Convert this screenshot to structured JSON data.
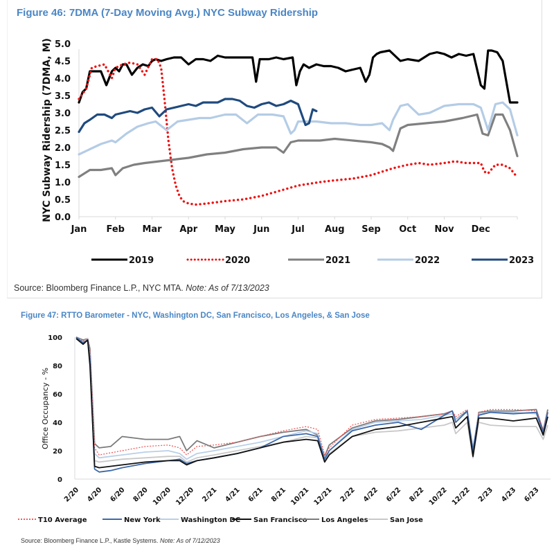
{
  "chart_data": [
    {
      "type": "line",
      "title": "Figure 46: 7DMA (7-Day Moving Avg.) NYC Subway Ridership",
      "xlabel": "",
      "ylabel": "NYC Subway Ridership (7DMA, M)",
      "ylim": [
        0,
        5
      ],
      "yticks": [
        "0.0",
        "0.5",
        "1.0",
        "1.5",
        "2.0",
        "2.5",
        "3.0",
        "3.5",
        "4.0",
        "4.5",
        "5.0"
      ],
      "categories": [
        "Jan",
        "Feb",
        "Mar",
        "Apr",
        "May",
        "Jun",
        "Jul",
        "Aug",
        "Sep",
        "Oct",
        "Nov",
        "Dec"
      ],
      "x_unit": "month index (0 = Jan 1, 12 = Dec 31)",
      "grid": false,
      "legend_position": "bottom",
      "series": [
        {
          "name": "2019",
          "color": "#000000",
          "style": "solid",
          "x": [
            0,
            0.1,
            0.2,
            0.3,
            0.45,
            0.6,
            0.75,
            0.9,
            1.0,
            1.1,
            1.2,
            1.3,
            1.45,
            1.6,
            1.75,
            1.9,
            2.0,
            2.1,
            2.25,
            2.4,
            2.6,
            2.8,
            3.0,
            3.2,
            3.4,
            3.6,
            3.8,
            4.0,
            4.2,
            4.4,
            4.6,
            4.75,
            4.85,
            4.95,
            5.05,
            5.2,
            5.4,
            5.6,
            5.85,
            5.95,
            6.05,
            6.15,
            6.3,
            6.5,
            6.7,
            6.9,
            7.1,
            7.3,
            7.5,
            7.7,
            7.85,
            7.95,
            8.05,
            8.15,
            8.25,
            8.5,
            8.8,
            9.0,
            9.3,
            9.6,
            9.8,
            10.0,
            10.2,
            10.4,
            10.6,
            10.8,
            11.0,
            11.1,
            11.2,
            11.3,
            11.45,
            11.6,
            11.8,
            12.0
          ],
          "values": [
            3.3,
            3.6,
            3.7,
            4.2,
            4.2,
            4.2,
            3.8,
            4.2,
            4.3,
            4.2,
            4.4,
            4.4,
            4.1,
            4.3,
            4.4,
            4.35,
            4.5,
            4.55,
            4.5,
            4.55,
            4.6,
            4.6,
            4.4,
            4.55,
            4.55,
            4.5,
            4.65,
            4.6,
            4.6,
            4.6,
            4.6,
            4.6,
            3.9,
            4.55,
            4.55,
            4.55,
            4.6,
            4.55,
            4.6,
            3.8,
            4.2,
            4.4,
            4.3,
            4.4,
            4.35,
            4.35,
            4.3,
            4.2,
            4.25,
            4.3,
            3.9,
            4.1,
            4.6,
            4.7,
            4.75,
            4.8,
            4.5,
            4.55,
            4.5,
            4.7,
            4.75,
            4.7,
            4.6,
            4.7,
            4.65,
            4.7,
            3.8,
            3.7,
            4.8,
            4.8,
            4.75,
            4.5,
            3.3,
            3.3
          ]
        },
        {
          "name": "2020",
          "color": "#ee1111",
          "style": "dotted",
          "x": [
            0,
            0.2,
            0.35,
            0.5,
            0.7,
            0.9,
            1.0,
            1.2,
            1.4,
            1.6,
            1.8,
            2.0,
            2.15,
            2.25,
            2.35,
            2.45,
            2.55,
            2.65,
            2.75,
            2.85,
            3.0,
            3.2,
            3.5,
            4.0,
            4.5,
            5.0,
            5.5,
            6.0,
            6.3,
            6.6,
            7.0,
            7.5,
            8.0,
            8.3,
            8.6,
            9.0,
            9.3,
            9.6,
            10.0,
            10.3,
            10.6,
            11.0,
            11.1,
            11.2,
            11.4,
            11.6,
            11.8,
            11.95
          ],
          "values": [
            3.4,
            3.7,
            4.3,
            4.35,
            4.4,
            4.0,
            4.3,
            4.4,
            4.45,
            4.4,
            4.1,
            4.55,
            4.55,
            4.3,
            3.3,
            2.2,
            1.4,
            0.9,
            0.6,
            0.45,
            0.38,
            0.35,
            0.38,
            0.45,
            0.5,
            0.6,
            0.75,
            0.9,
            0.95,
            1.0,
            1.05,
            1.1,
            1.2,
            1.3,
            1.4,
            1.5,
            1.55,
            1.5,
            1.55,
            1.6,
            1.55,
            1.55,
            1.3,
            1.25,
            1.5,
            1.5,
            1.4,
            1.2
          ]
        },
        {
          "name": "2021",
          "color": "#808080",
          "style": "solid",
          "x": [
            0,
            0.3,
            0.6,
            0.9,
            1.0,
            1.2,
            1.5,
            1.8,
            2.2,
            2.6,
            3.0,
            3.5,
            4.0,
            4.5,
            5.0,
            5.4,
            5.6,
            5.8,
            6.0,
            6.3,
            6.6,
            7.0,
            7.5,
            8.0,
            8.3,
            8.5,
            8.6,
            8.8,
            9.0,
            9.5,
            10.0,
            10.5,
            10.9,
            11.05,
            11.2,
            11.4,
            11.6,
            11.8,
            12.0
          ],
          "values": [
            1.15,
            1.35,
            1.35,
            1.4,
            1.2,
            1.4,
            1.5,
            1.55,
            1.6,
            1.65,
            1.7,
            1.8,
            1.85,
            1.95,
            2.0,
            2.0,
            1.85,
            2.15,
            2.2,
            2.2,
            2.2,
            2.25,
            2.2,
            2.15,
            2.1,
            2.0,
            1.9,
            2.55,
            2.65,
            2.7,
            2.75,
            2.85,
            2.95,
            2.4,
            2.35,
            2.95,
            2.95,
            2.5,
            1.75
          ]
        },
        {
          "name": "2022",
          "color": "#b4cce6",
          "style": "solid",
          "x": [
            0,
            0.3,
            0.6,
            0.9,
            1.0,
            1.3,
            1.6,
            1.9,
            2.1,
            2.4,
            2.7,
            3.0,
            3.3,
            3.6,
            4.0,
            4.3,
            4.6,
            4.9,
            5.1,
            5.3,
            5.6,
            5.8,
            5.9,
            6.0,
            6.2,
            6.5,
            6.9,
            7.3,
            7.7,
            8.0,
            8.3,
            8.5,
            8.6,
            8.8,
            9.0,
            9.3,
            9.6,
            10.0,
            10.4,
            10.8,
            11.0,
            11.2,
            11.4,
            11.6,
            11.8,
            12.0
          ],
          "values": [
            1.8,
            1.95,
            2.1,
            2.2,
            2.15,
            2.4,
            2.6,
            2.7,
            2.75,
            2.5,
            2.75,
            2.8,
            2.85,
            2.85,
            2.95,
            2.95,
            2.7,
            2.95,
            2.95,
            2.95,
            2.9,
            2.4,
            2.5,
            2.75,
            2.75,
            2.75,
            2.7,
            2.7,
            2.65,
            2.65,
            2.7,
            2.5,
            2.8,
            3.2,
            3.25,
            2.95,
            3.0,
            3.2,
            3.25,
            3.25,
            3.15,
            2.5,
            3.25,
            3.3,
            3.1,
            2.35
          ]
        },
        {
          "name": "2023",
          "color": "#1f4a7e",
          "style": "solid",
          "x": [
            0,
            0.15,
            0.3,
            0.5,
            0.7,
            0.9,
            1.0,
            1.2,
            1.4,
            1.6,
            1.8,
            2.0,
            2.2,
            2.4,
            2.6,
            2.8,
            3.0,
            3.2,
            3.4,
            3.6,
            3.8,
            4.0,
            4.2,
            4.4,
            4.6,
            4.8,
            5.0,
            5.2,
            5.4,
            5.6,
            5.8,
            6.0,
            6.2,
            6.3,
            6.4,
            6.5
          ],
          "values": [
            2.45,
            2.7,
            2.8,
            2.95,
            2.95,
            2.85,
            2.95,
            3.0,
            3.05,
            3.0,
            3.1,
            3.15,
            2.9,
            3.1,
            3.15,
            3.2,
            3.25,
            3.2,
            3.3,
            3.3,
            3.3,
            3.4,
            3.4,
            3.35,
            3.2,
            3.15,
            3.25,
            3.3,
            3.2,
            3.25,
            3.35,
            3.25,
            2.65,
            2.7,
            3.1,
            3.05
          ]
        }
      ],
      "source": "Source: Bloomberg Finance L.P., NYC MTA.",
      "note": "Note: As of 7/13/2023"
    },
    {
      "type": "line",
      "title": "Figure 47: RTTO Barometer - NYC, Washington DC, San Francisco, Los Angeles, & San Jose",
      "xlabel": "",
      "ylabel": "Office Occupancy - %",
      "ylim": [
        0,
        100
      ],
      "yticks": [
        "0",
        "20",
        "40",
        "60",
        "80",
        "100"
      ],
      "categories": [
        "2/20",
        "4/20",
        "6/20",
        "8/20",
        "10/20",
        "12/20",
        "2/21",
        "4/21",
        "6/21",
        "8/21",
        "10/21",
        "12/21",
        "2/22",
        "4/22",
        "6/22",
        "8/22",
        "10/22",
        "12/22",
        "2/23",
        "4/23",
        "6/23"
      ],
      "x_unit": "months since Feb 2020 (0 = 2/20, 41 = 7/23)",
      "grid": false,
      "legend_position": "bottom",
      "series": [
        {
          "name": "T10 Average",
          "color": "#f05a5a",
          "style": "dotted",
          "x": [
            0,
            0.6,
            1.0,
            1.2,
            1.6,
            2,
            4,
            6,
            8,
            9,
            9.6,
            10.5,
            12,
            14,
            16,
            18,
            20,
            21,
            21.6,
            22,
            23,
            24,
            26,
            28,
            30,
            32,
            32.7,
            33,
            34,
            34.5,
            35,
            36,
            38,
            40,
            40.6,
            41
          ],
          "values": [
            100,
            97,
            99,
            90,
            22,
            17,
            20,
            23,
            24,
            22,
            17,
            23,
            24,
            26,
            30,
            34,
            37,
            35,
            17,
            22,
            30,
            38,
            42,
            43,
            44,
            46,
            48,
            44,
            49,
            20,
            47,
            49,
            49,
            48,
            35,
            48
          ]
        },
        {
          "name": "New York",
          "color": "#3d68a8",
          "style": "solid",
          "x": [
            0,
            0.6,
            1.0,
            1.2,
            1.6,
            2,
            3,
            4,
            6,
            8,
            9,
            9.6,
            10.5,
            12,
            14,
            16,
            18,
            20,
            21,
            21.6,
            22,
            24,
            26,
            28,
            30,
            32,
            32.7,
            33,
            34,
            34.5,
            35,
            36,
            38,
            40,
            40.6,
            41
          ],
          "values": [
            100,
            96,
            98,
            85,
            7,
            5,
            6,
            8,
            11,
            13,
            14,
            11,
            13,
            15,
            18,
            22,
            30,
            32,
            30,
            14,
            20,
            34,
            38,
            40,
            35,
            45,
            48,
            40,
            48,
            20,
            45,
            47,
            46,
            47,
            33,
            47
          ]
        },
        {
          "name": "Washington DC",
          "color": "#b8cfe8",
          "style": "solid",
          "x": [
            0,
            0.6,
            1.0,
            1.2,
            1.6,
            2,
            4,
            6,
            8,
            9,
            9.6,
            10.5,
            12,
            14,
            16,
            18,
            20,
            21,
            21.6,
            22,
            24,
            26,
            28,
            30,
            32,
            32.7,
            33,
            34,
            34.5,
            35,
            36,
            38,
            40,
            40.6,
            41
          ],
          "values": [
            100,
            97,
            99,
            88,
            18,
            15,
            17,
            19,
            20,
            18,
            14,
            18,
            20,
            23,
            26,
            30,
            34,
            32,
            15,
            20,
            35,
            40,
            41,
            42,
            45,
            46,
            42,
            47,
            22,
            46,
            47,
            47,
            46,
            33,
            47
          ]
        },
        {
          "name": "San Francisco",
          "color": "#111111",
          "style": "solid",
          "x": [
            0,
            0.6,
            1.0,
            1.2,
            1.6,
            2,
            4,
            6,
            8,
            9,
            9.6,
            10.5,
            12,
            14,
            16,
            18,
            20,
            21,
            21.6,
            22,
            24,
            26,
            28,
            30,
            32,
            32.7,
            33,
            34,
            34.5,
            35,
            36,
            38,
            40,
            40.6,
            41
          ],
          "values": [
            99,
            95,
            98,
            80,
            9,
            8,
            10,
            12,
            13,
            13,
            10,
            13,
            15,
            18,
            22,
            26,
            28,
            27,
            12,
            17,
            30,
            35,
            37,
            40,
            43,
            44,
            36,
            44,
            16,
            43,
            43,
            41,
            43,
            31,
            44
          ]
        },
        {
          "name": "Los Angeles",
          "color": "#7a7a7a",
          "style": "solid",
          "x": [
            0,
            0.6,
            1.0,
            1.2,
            1.6,
            2,
            3,
            4,
            6,
            8,
            9,
            9.6,
            10.5,
            12,
            14,
            16,
            18,
            20,
            21,
            21.6,
            22,
            24,
            26,
            28,
            30,
            32,
            32.7,
            33,
            34,
            34.5,
            35,
            36,
            38,
            40,
            40.6,
            41
          ],
          "values": [
            100,
            98,
            99,
            92,
            25,
            22,
            23,
            30,
            28,
            28,
            30,
            20,
            27,
            22,
            26,
            30,
            33,
            35,
            31,
            16,
            24,
            36,
            41,
            42,
            44,
            46,
            48,
            42,
            48,
            18,
            47,
            48,
            48,
            49,
            34,
            49
          ]
        },
        {
          "name": "San Jose",
          "color": "#c8c8c8",
          "style": "solid",
          "x": [
            0,
            0.6,
            1.0,
            1.2,
            1.6,
            2,
            4,
            6,
            8,
            9,
            9.6,
            10.5,
            12,
            14,
            16,
            18,
            20,
            21,
            21.6,
            22,
            24,
            26,
            28,
            30,
            32,
            32.7,
            33,
            34,
            34.5,
            35,
            36,
            38,
            40,
            40.6,
            41
          ],
          "values": [
            99,
            96,
            98,
            86,
            13,
            12,
            14,
            15,
            16,
            16,
            12,
            15,
            17,
            20,
            23,
            26,
            30,
            29,
            13,
            18,
            30,
            33,
            34,
            36,
            38,
            40,
            32,
            40,
            15,
            40,
            38,
            37,
            37,
            28,
            38
          ]
        }
      ],
      "source": "Source: Bloomberg Finance L.P., Kastle Systems.",
      "note": "Note: As of 7/12/2023"
    }
  ]
}
